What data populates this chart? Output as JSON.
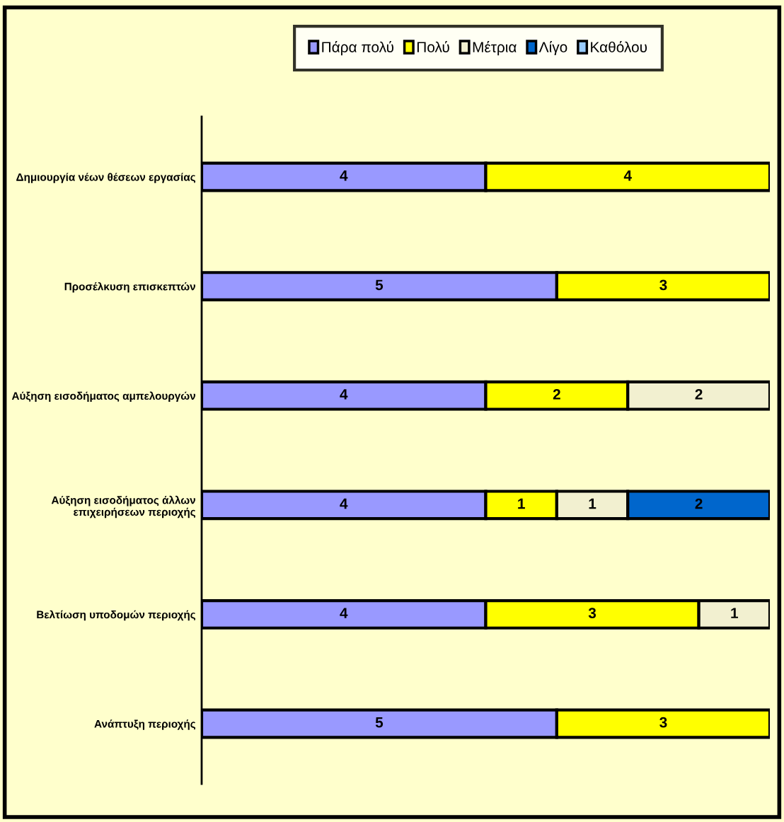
{
  "chart_data": {
    "type": "bar",
    "orientation": "horizontal",
    "stacked": true,
    "data_labels": true,
    "legend": "top",
    "grid": false,
    "tick_labels": "y",
    "categories": [
      "Δημιουργία νέων θέσεων εργασίας",
      "Προσέλκυση επισκεπτών",
      "Αύξηση εισοδήματος αμπελουργών",
      "Αύξηση εισοδήματος άλλων\nεπιχειρήσεων περιοχής",
      "Βελτίωση υποδομών περιοχής",
      "Ανάπτυξη περιοχής"
    ],
    "series": [
      {
        "name": "Πάρα πολύ",
        "color": "#9999ff",
        "values": [
          4,
          5,
          4,
          4,
          4,
          5
        ]
      },
      {
        "name": "Πολύ",
        "color": "#ffff00",
        "values": [
          4,
          3,
          2,
          1,
          3,
          3
        ]
      },
      {
        "name": "Μέτρια",
        "color": "#f2f0d0",
        "values": [
          null,
          null,
          2,
          1,
          1,
          null
        ]
      },
      {
        "name": "Λίγο",
        "color": "#0066cc",
        "values": [
          null,
          null,
          null,
          2,
          null,
          null
        ]
      },
      {
        "name": "Καθόλου",
        "color": "#99ccff",
        "values": [
          null,
          null,
          null,
          null,
          null,
          null
        ]
      }
    ]
  }
}
